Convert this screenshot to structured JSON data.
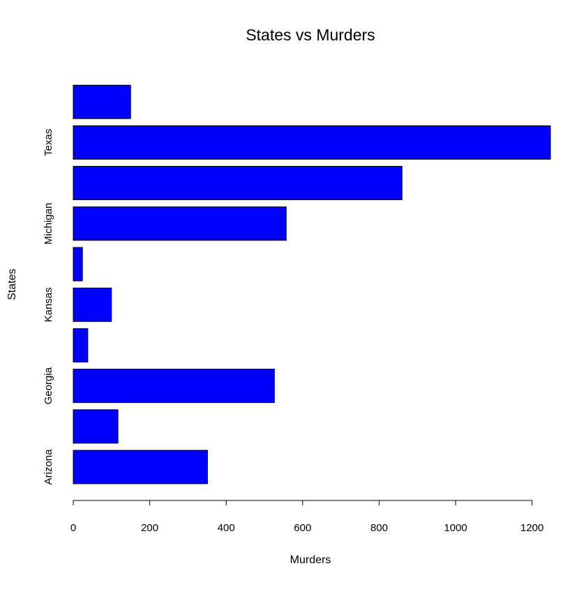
{
  "chart_data": {
    "type": "bar",
    "orientation": "horizontal",
    "title": "States vs Murders",
    "xlabel": "Murders",
    "ylabel": "States",
    "categories": [
      "Arizona",
      "",
      "Georgia",
      "",
      "Kansas",
      "",
      "Michigan",
      "",
      "Texas",
      ""
    ],
    "values": [
      351,
      117,
      526,
      38,
      100,
      24,
      557,
      860,
      1248,
      150
    ],
    "xlim": [
      0,
      1248
    ],
    "xticks": [
      0,
      200,
      400,
      600,
      800,
      1000,
      1200
    ],
    "grid": false,
    "legend": "none",
    "bar_color": "#0000ff",
    "bar_border_color": "#000000"
  }
}
